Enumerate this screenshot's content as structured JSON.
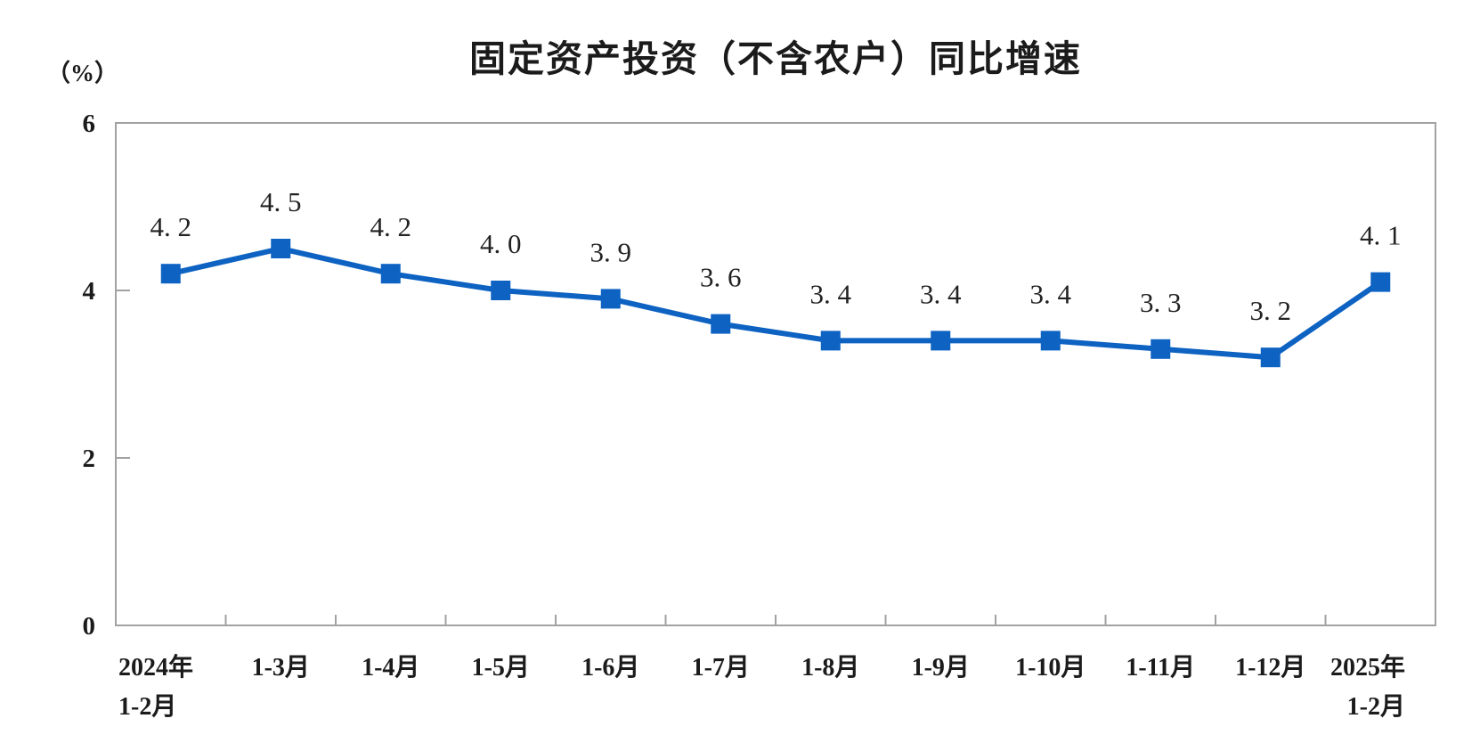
{
  "chart_data": {
    "type": "line",
    "title": "固定资产投资（不含农户）同比增速",
    "unit_label": "（%）",
    "categories": [
      {
        "lines": [
          "2024年",
          "1-2月"
        ],
        "align": "start"
      },
      {
        "lines": [
          "1-3月"
        ],
        "align": "middle"
      },
      {
        "lines": [
          "1-4月"
        ],
        "align": "middle"
      },
      {
        "lines": [
          "1-5月"
        ],
        "align": "middle"
      },
      {
        "lines": [
          "1-6月"
        ],
        "align": "middle"
      },
      {
        "lines": [
          "1-7月"
        ],
        "align": "middle"
      },
      {
        "lines": [
          "1-8月"
        ],
        "align": "middle"
      },
      {
        "lines": [
          "1-9月"
        ],
        "align": "middle"
      },
      {
        "lines": [
          "1-10月"
        ],
        "align": "middle"
      },
      {
        "lines": [
          "1-11月"
        ],
        "align": "middle"
      },
      {
        "lines": [
          "1-12月"
        ],
        "align": "middle"
      },
      {
        "lines": [
          "2025年",
          "1-2月"
        ],
        "align": "end"
      }
    ],
    "series": [
      {
        "name": "固定资产投资（不含农户）同比增速",
        "values": [
          4.2,
          4.5,
          4.2,
          4.0,
          3.9,
          3.6,
          3.4,
          3.4,
          3.4,
          3.3,
          3.2,
          4.1
        ],
        "point_labels": [
          "4.2",
          "4.5",
          "4.2",
          "4.0",
          "3.9",
          "3.6",
          "3.4",
          "3.4",
          "3.4",
          "3.3",
          "3.2",
          "4.1"
        ]
      }
    ],
    "y_ticks": [
      0,
      2,
      4,
      6
    ],
    "ylim": [
      0,
      6
    ],
    "grid": false,
    "legend_position": "none",
    "marker_shape": "square",
    "colors": {
      "line": "#0d62c2",
      "marker": "#0d62c2",
      "axis_frame": "#a2a2a2",
      "text": "#1b1b1b",
      "background": "#ffffff"
    }
  }
}
